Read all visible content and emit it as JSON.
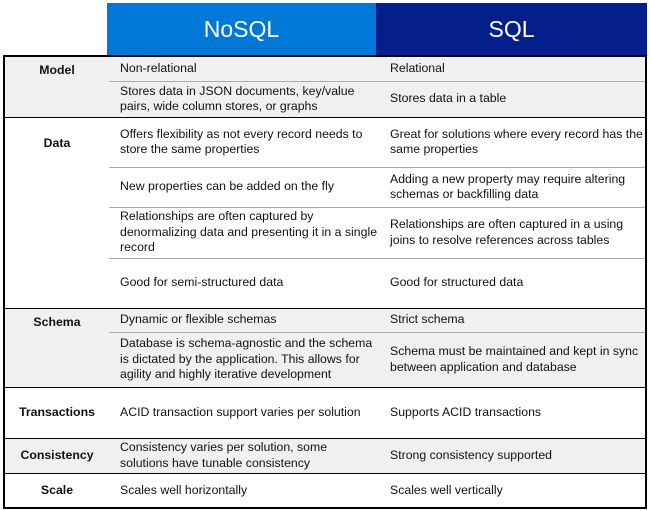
{
  "colors": {
    "nosql_header": "#0078d7",
    "sql_header": "#041e8c",
    "shaded_row": "#f0f0f0"
  },
  "headers": {
    "nosql": "NoSQL",
    "sql": "SQL"
  },
  "sections": [
    {
      "label": "Model",
      "rows": [
        {
          "nosql": "Non-relational",
          "sql": "Relational"
        },
        {
          "nosql": "Stores data in JSON documents, key/value pairs, wide column stores, or graphs",
          "sql": "Stores data in a table"
        }
      ]
    },
    {
      "label": "Data",
      "rows": [
        {
          "nosql": "Offers flexibility as not every record needs to store the same properties",
          "sql": "Great for solutions where every record has the same properties"
        },
        {
          "nosql": "New properties can be added on the fly",
          "sql": "Adding a new property may require altering schemas or backfilling data"
        },
        {
          "nosql": "Relationships are often captured by denormalizing data and presenting it in a single record",
          "sql": "Relationships are often captured in a using joins to resolve references across tables"
        },
        {
          "nosql": "Good for semi-structured data",
          "sql": "Good for structured data"
        }
      ]
    },
    {
      "label": "Schema",
      "rows": [
        {
          "nosql": "Dynamic or flexible schemas",
          "sql": "Strict schema"
        },
        {
          "nosql": "Database is schema-agnostic and the schema is dictated by the application. This allows for agility and highly iterative development",
          "sql": "Schema must be maintained and kept in sync between application and database"
        }
      ]
    },
    {
      "label": "Transactions",
      "rows": [
        {
          "nosql": "ACID transaction support varies per solution",
          "sql": "Supports ACID transactions"
        }
      ]
    },
    {
      "label": "Consistency",
      "rows": [
        {
          "nosql": "Consistency varies per solution, some solutions have tunable consistency",
          "sql": "Strong consistency supported"
        }
      ]
    },
    {
      "label": "Scale",
      "rows": [
        {
          "nosql": "Scales well horizontally",
          "sql": "Scales well vertically"
        }
      ]
    }
  ]
}
